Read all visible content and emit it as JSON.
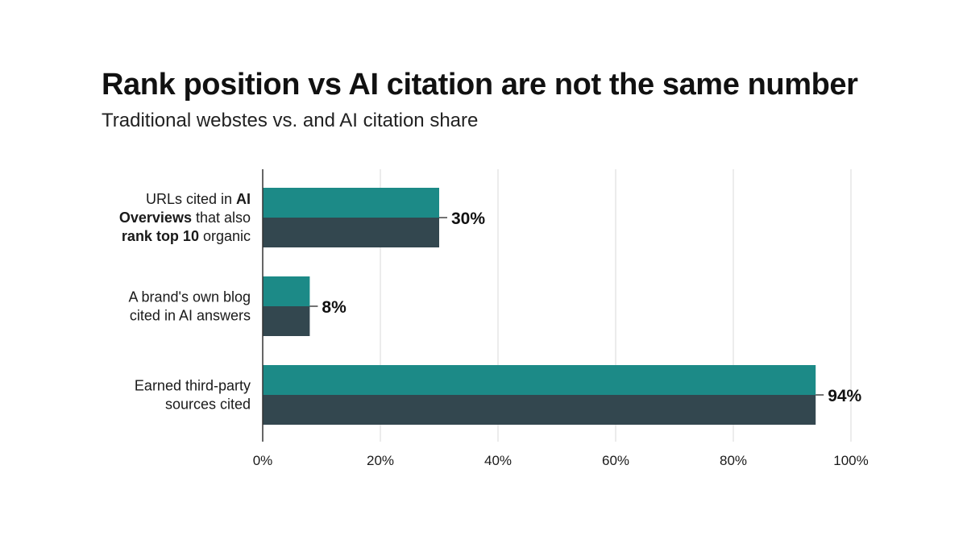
{
  "chart_data": {
    "type": "bar",
    "orientation": "horizontal",
    "title": "Rank position vs AI citation are not the same number",
    "subtitle": "Traditional webstes vs. and AI citation share",
    "categories": [
      {
        "label_lines": [
          [
            {
              "text": "URLs cited in ",
              "bold": false
            },
            {
              "text": "AI",
              "bold": true
            }
          ],
          [
            {
              "text": "Overviews",
              "bold": true
            },
            {
              "text": " that also",
              "bold": false
            }
          ],
          [
            {
              "text": "rank top 10",
              "bold": true
            },
            {
              "text": " organic",
              "bold": false
            }
          ]
        ]
      },
      {
        "label_lines": [
          [
            {
              "text": "A brand's own blog",
              "bold": false
            }
          ],
          [
            {
              "text": "cited in AI answers",
              "bold": false
            }
          ]
        ]
      },
      {
        "label_lines": [
          [
            {
              "text": "Earned third-party",
              "bold": false
            }
          ],
          [
            {
              "text": "sources cited",
              "bold": false
            }
          ]
        ]
      }
    ],
    "values": [
      30,
      8,
      94
    ],
    "value_labels": [
      "30%",
      "8%",
      "94%"
    ],
    "xlim": [
      0,
      100
    ],
    "xticks": [
      0,
      20,
      40,
      60,
      80,
      100
    ],
    "xtick_labels": [
      "0%",
      "20%",
      "40%",
      "60%",
      "80%",
      "100%"
    ],
    "grid": true,
    "colors": {
      "bar_top": "#1c8a87",
      "bar_bottom": "#33474f",
      "grid": "#d9d9d9",
      "axis": "#333333",
      "leader": "#444444"
    }
  }
}
